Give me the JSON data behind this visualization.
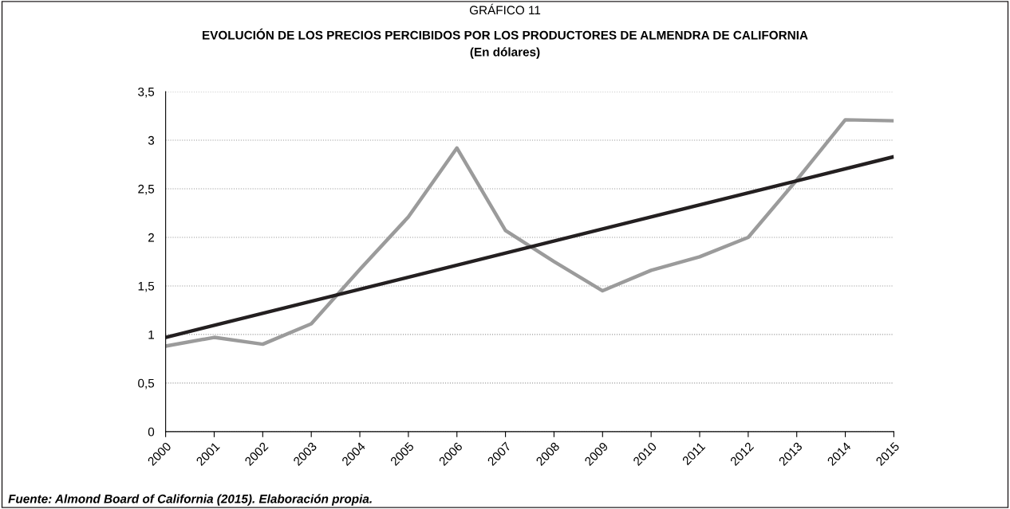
{
  "chart_data": {
    "type": "line",
    "title": "GRÁFICO 11",
    "subtitle": "EVOLUCIÓN DE LOS PRECIOS PERCIBIDOS POR LOS PRODUCTORES DE ALMENDRA DE CALIFORNIA\n(En dólares)",
    "x": [
      2000,
      2001,
      2002,
      2003,
      2004,
      2005,
      2006,
      2007,
      2008,
      2009,
      2010,
      2011,
      2012,
      2013,
      2014,
      2015
    ],
    "series": [
      {
        "color": "#9b9b9b",
        "values": [
          0.88,
          0.97,
          0.9,
          1.11,
          1.67,
          2.21,
          2.92,
          2.07,
          1.75,
          1.45,
          1.66,
          1.8,
          2.0,
          2.59,
          3.21,
          3.2
        ]
      },
      {
        "color": "#231f20",
        "x": [
          2000,
          2015
        ],
        "values": [
          0.97,
          2.83
        ]
      }
    ],
    "xlim": [
      2000,
      2015
    ],
    "xticks": [
      2000,
      2001,
      2002,
      2003,
      2004,
      2005,
      2006,
      2007,
      2008,
      2009,
      2010,
      2011,
      2012,
      2013,
      2014,
      2015
    ],
    "ylim": [
      0,
      3.5
    ],
    "yticks": [
      0,
      {
        "value": 0.5,
        "label": "0,5"
      },
      1,
      {
        "value": 1.5,
        "label": "1,5"
      },
      2,
      {
        "value": 2.5,
        "label": "2,5"
      },
      3,
      {
        "value": 3.5,
        "label": "3,5"
      }
    ],
    "grid": "y",
    "marker": "none",
    "line_style": "solid",
    "annotations": [
      "Fuente: Almond Board of California (2015). Elaboración propia."
    ]
  }
}
